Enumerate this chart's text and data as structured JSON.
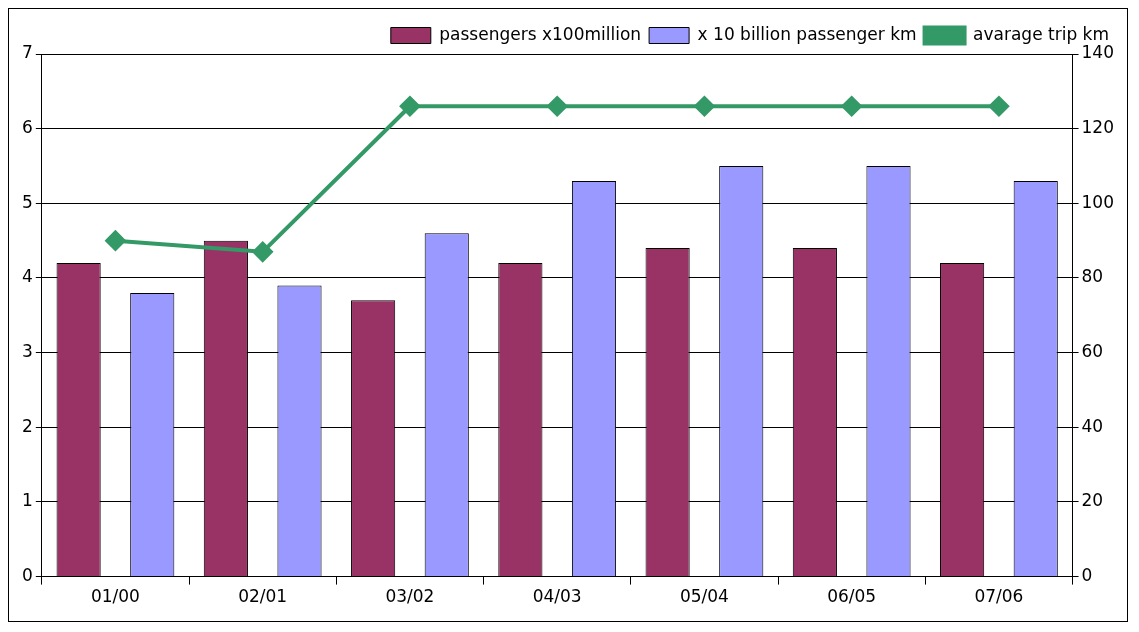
{
  "chart_data": {
    "type": "bar",
    "categories": [
      "01/00",
      "02/01",
      "03/02",
      "04/03",
      "05/04",
      "06/05",
      "07/06"
    ],
    "series": [
      {
        "name": "passengers x100million",
        "color": "#993366",
        "values": [
          4.2,
          4.5,
          3.7,
          4.2,
          4.4,
          4.4,
          4.2
        ]
      },
      {
        "name": "x 10 billion passenger km",
        "color": "#9999ff",
        "values": [
          3.8,
          3.9,
          4.6,
          5.3,
          5.5,
          5.5,
          5.3
        ]
      },
      {
        "name": "avarage trip km",
        "type": "line",
        "axis": "y2",
        "color": "#339966",
        "marker": "diamond",
        "values": [
          90,
          87,
          126,
          126,
          126,
          126,
          126
        ]
      }
    ],
    "ylim": [
      0,
      7
    ],
    "yticks": [
      0,
      1,
      2,
      3,
      4,
      5,
      6,
      7
    ],
    "y2lim": [
      0,
      140
    ],
    "y2ticks": [
      0,
      20,
      40,
      60,
      80,
      100,
      120,
      140
    ],
    "grid": "y",
    "legend": "top right"
  }
}
